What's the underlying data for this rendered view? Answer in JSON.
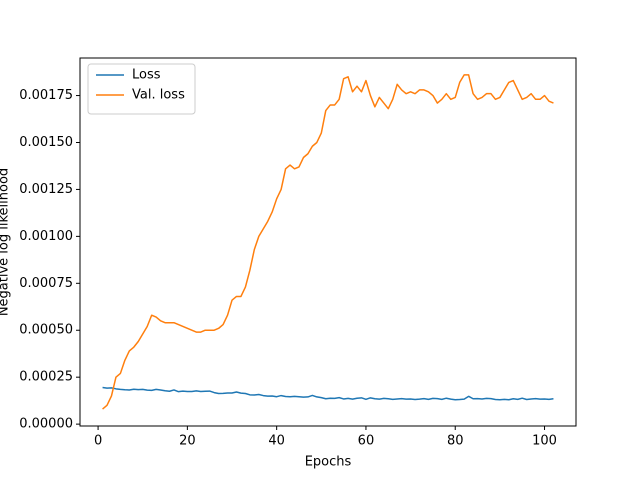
{
  "chart_data": {
    "type": "line",
    "xlabel": "Epochs",
    "ylabel": "Negative log likelihood",
    "x": [
      1,
      2,
      3,
      4,
      5,
      6,
      7,
      8,
      9,
      10,
      11,
      12,
      13,
      14,
      15,
      16,
      17,
      18,
      19,
      20,
      21,
      22,
      23,
      24,
      25,
      26,
      27,
      28,
      29,
      30,
      31,
      32,
      33,
      34,
      35,
      36,
      37,
      38,
      39,
      40,
      41,
      42,
      43,
      44,
      45,
      46,
      47,
      48,
      49,
      50,
      51,
      52,
      53,
      54,
      55,
      56,
      57,
      58,
      59,
      60,
      61,
      62,
      63,
      64,
      65,
      66,
      67,
      68,
      69,
      70,
      71,
      72,
      73,
      74,
      75,
      76,
      77,
      78,
      79,
      80,
      81,
      82,
      83,
      84,
      85,
      86,
      87,
      88,
      89,
      90,
      91,
      92,
      93,
      94,
      95,
      96,
      97,
      98,
      99,
      100,
      101,
      102
    ],
    "series": [
      {
        "name": "Loss",
        "color": "#1f77b4",
        "values": [
          0.000195,
          0.000192,
          0.000193,
          0.000188,
          0.000185,
          0.000183,
          0.000182,
          0.000186,
          0.000184,
          0.000185,
          0.000181,
          0.00018,
          0.000185,
          0.000182,
          0.000178,
          0.000175,
          0.000182,
          0.000173,
          0.000176,
          0.000174,
          0.000174,
          0.000177,
          0.000174,
          0.000175,
          0.000176,
          0.000168,
          0.000163,
          0.000164,
          0.000166,
          0.000166,
          0.000171,
          0.000165,
          0.000163,
          0.000156,
          0.000155,
          0.000158,
          0.000152,
          0.000149,
          0.00015,
          0.000146,
          0.000152,
          0.000147,
          0.000146,
          0.000148,
          0.000146,
          0.000144,
          0.000145,
          0.000153,
          0.000145,
          0.000141,
          0.000135,
          0.000138,
          0.000137,
          0.000141,
          0.000134,
          0.000137,
          0.000133,
          0.000138,
          0.00014,
          0.000132,
          0.00014,
          0.000135,
          0.000133,
          0.000137,
          0.000135,
          0.000132,
          0.000134,
          0.000136,
          0.000133,
          0.000134,
          0.000131,
          0.000133,
          0.000136,
          0.000132,
          0.000137,
          0.000136,
          0.000132,
          0.000138,
          0.000133,
          0.00013,
          0.000131,
          0.000133,
          0.000148,
          0.000135,
          0.000136,
          0.000134,
          0.000137,
          0.000136,
          0.000131,
          0.00013,
          0.000132,
          0.00013,
          0.000135,
          0.000132,
          0.000138,
          0.000131,
          0.000134,
          0.000136,
          0.000133,
          0.000134,
          0.000132,
          0.000135
        ]
      },
      {
        "name": "Val. loss",
        "color": "#ff7f0e",
        "values": [
          8e-05,
          0.0001,
          0.00015,
          0.00025,
          0.00027,
          0.00034,
          0.00039,
          0.00041,
          0.00044,
          0.00048,
          0.00052,
          0.00058,
          0.00057,
          0.00055,
          0.00054,
          0.00054,
          0.00054,
          0.00053,
          0.00052,
          0.00051,
          0.0005,
          0.00049,
          0.00049,
          0.0005,
          0.0005,
          0.0005,
          0.00051,
          0.00053,
          0.00058,
          0.00066,
          0.00068,
          0.00068,
          0.00073,
          0.00082,
          0.00093,
          0.001,
          0.00104,
          0.00108,
          0.00113,
          0.0012,
          0.00125,
          0.00136,
          0.00138,
          0.00136,
          0.00137,
          0.00142,
          0.00144,
          0.00148,
          0.0015,
          0.00155,
          0.00167,
          0.0017,
          0.0017,
          0.00173,
          0.00184,
          0.00185,
          0.00177,
          0.0018,
          0.00177,
          0.00183,
          0.00175,
          0.00169,
          0.00174,
          0.00171,
          0.00168,
          0.00173,
          0.00181,
          0.00178,
          0.00176,
          0.00177,
          0.00176,
          0.00178,
          0.00178,
          0.00177,
          0.00175,
          0.00171,
          0.00173,
          0.00176,
          0.00173,
          0.00174,
          0.00182,
          0.00186,
          0.00186,
          0.00176,
          0.00173,
          0.00174,
          0.00176,
          0.00176,
          0.00173,
          0.00174,
          0.00178,
          0.00182,
          0.00183,
          0.00178,
          0.00173,
          0.00174,
          0.00176,
          0.00173,
          0.00173,
          0.00175,
          0.00172,
          0.00171
        ]
      }
    ],
    "xlim": [
      -4.05,
      107.05
    ],
    "xticks": [
      0,
      20,
      40,
      60,
      80,
      100
    ],
    "ylim": [
      -1e-05,
      0.00195
    ],
    "yticks": [
      {
        "value": 0,
        "label": "0.00000"
      },
      {
        "value": 0.00025,
        "label": "0.00025"
      },
      {
        "value": 0.0005,
        "label": "0.00050"
      },
      {
        "value": 0.00075,
        "label": "0.00075"
      },
      {
        "value": 0.001,
        "label": "0.00100"
      },
      {
        "value": 0.00125,
        "label": "0.00125"
      },
      {
        "value": 0.0015,
        "label": "0.00150"
      },
      {
        "value": 0.00175,
        "label": "0.00175"
      }
    ],
    "legend": "upper left",
    "grid": false
  }
}
